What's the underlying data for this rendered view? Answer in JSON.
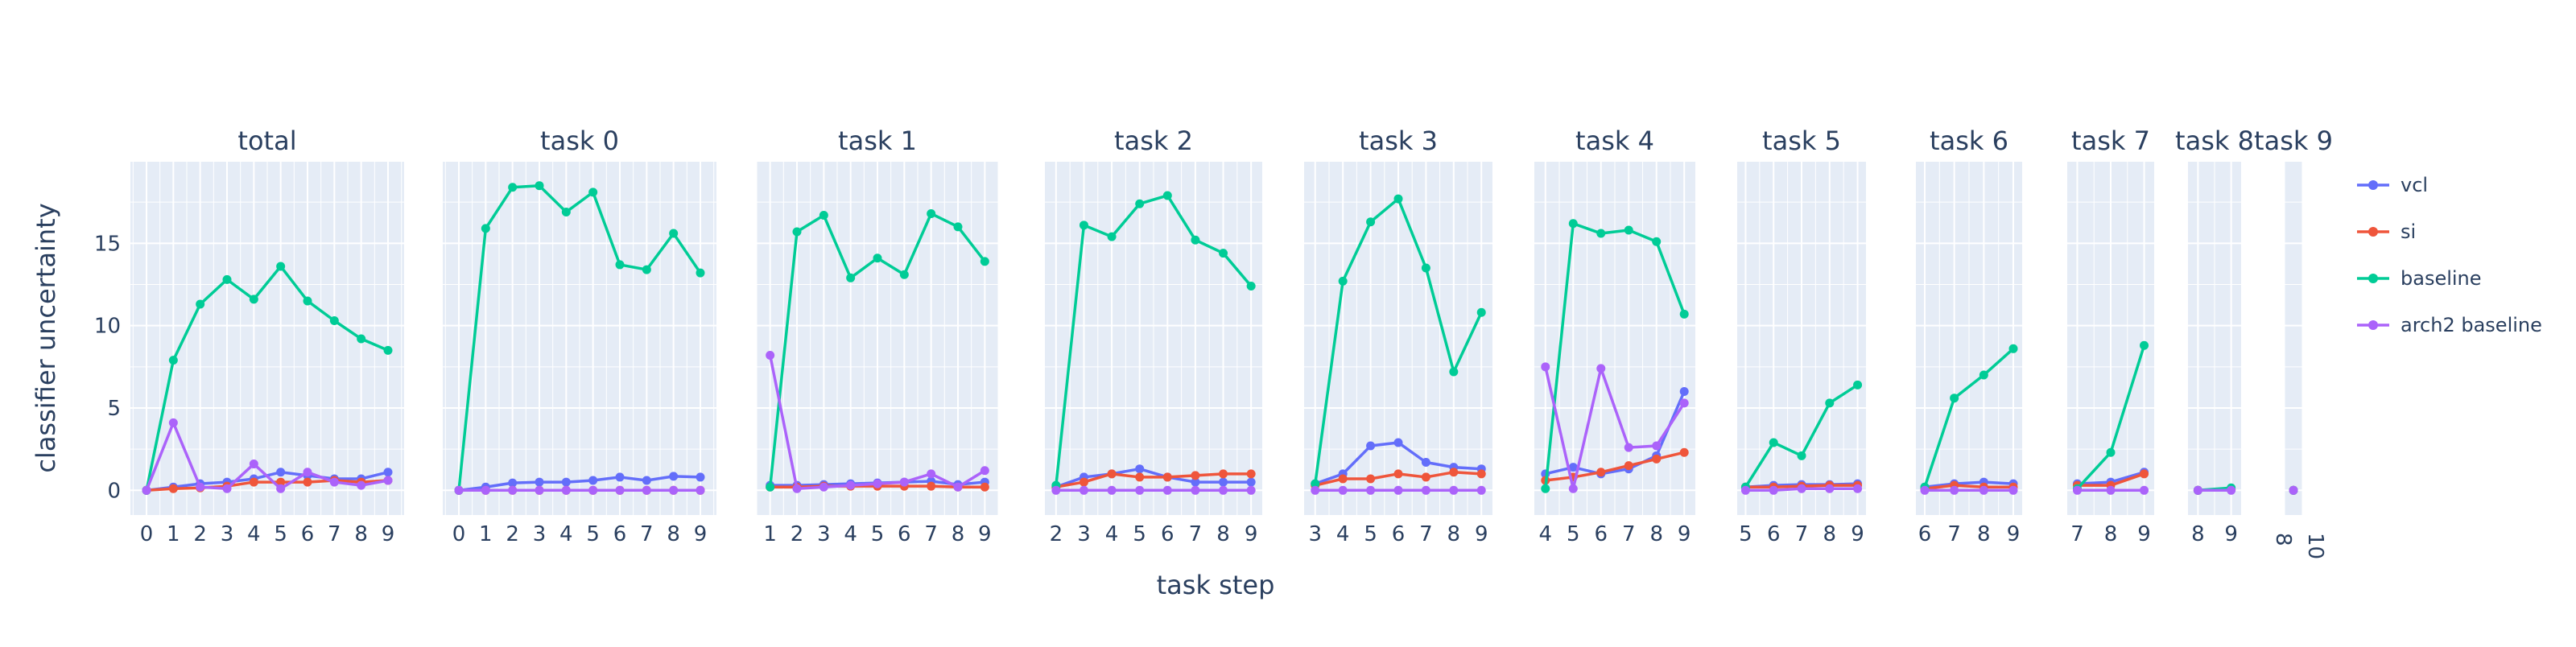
{
  "chart_data": {
    "type": "line",
    "ylabel": "classifier uncertainty",
    "xlabel": "task step",
    "ylim": [
      -1.5,
      20
    ],
    "yticks": [
      0,
      5,
      10,
      15
    ],
    "grid": true,
    "legend_position": "right",
    "series_styles": [
      {
        "name": "vcl",
        "color": "#636efa"
      },
      {
        "name": "si",
        "color": "#ef553b"
      },
      {
        "name": "baseline",
        "color": "#00cc96"
      },
      {
        "name": "arch2 baseline",
        "color": "#ab63fa"
      }
    ],
    "panels": [
      {
        "title": "total",
        "xlim": [
          -0.6,
          9.6
        ],
        "xticks": [
          0,
          1,
          2,
          3,
          4,
          5,
          6,
          7,
          8,
          9
        ],
        "series": [
          {
            "name": "vcl",
            "x": [
              0,
              1,
              2,
              3,
              4,
              5,
              6,
              7,
              8,
              9
            ],
            "y": [
              0,
              0.2,
              0.4,
              0.5,
              0.7,
              1.1,
              0.9,
              0.7,
              0.7,
              1.1
            ]
          },
          {
            "name": "si",
            "x": [
              0,
              1,
              2,
              3,
              4,
              5,
              6,
              7,
              8,
              9
            ],
            "y": [
              0,
              0.1,
              0.15,
              0.25,
              0.5,
              0.5,
              0.5,
              0.6,
              0.5,
              0.6
            ]
          },
          {
            "name": "baseline",
            "x": [
              0,
              1,
              2,
              3,
              4,
              5,
              6,
              7,
              8,
              9
            ],
            "y": [
              0,
              7.9,
              11.3,
              12.8,
              11.6,
              13.6,
              11.5,
              10.3,
              9.2,
              8.5
            ]
          },
          {
            "name": "arch2 baseline",
            "x": [
              0,
              1,
              2,
              3,
              4,
              5,
              6,
              7,
              8,
              9
            ],
            "y": [
              0,
              4.1,
              0.2,
              0.1,
              1.6,
              0.1,
              1.1,
              0.5,
              0.3,
              0.6
            ]
          }
        ]
      },
      {
        "title": "task 0",
        "xlim": [
          -0.6,
          9.6
        ],
        "xticks": [
          0,
          1,
          2,
          3,
          4,
          5,
          6,
          7,
          8,
          9
        ],
        "series": [
          {
            "name": "vcl",
            "x": [
              0,
              1,
              2,
              3,
              4,
              5,
              6,
              7,
              8,
              9
            ],
            "y": [
              0,
              0.2,
              0.45,
              0.5,
              0.5,
              0.6,
              0.8,
              0.6,
              0.85,
              0.8
            ]
          },
          {
            "name": "si",
            "x": [
              0,
              1,
              2,
              3,
              4,
              5,
              6,
              7,
              8,
              9
            ],
            "y": [
              0,
              0,
              0,
              0,
              0,
              0,
              0,
              0,
              0,
              0
            ]
          },
          {
            "name": "baseline",
            "x": [
              0,
              1,
              2,
              3,
              4,
              5,
              6,
              7,
              8,
              9
            ],
            "y": [
              0,
              15.9,
              18.4,
              18.5,
              16.9,
              18.1,
              13.7,
              13.4,
              15.6,
              13.2
            ]
          },
          {
            "name": "arch2 baseline",
            "x": [
              0,
              1,
              2,
              3,
              4,
              5,
              6,
              7,
              8,
              9
            ],
            "y": [
              0,
              0,
              0,
              0,
              0,
              0,
              0,
              0,
              0,
              0
            ]
          }
        ]
      },
      {
        "title": "task 1",
        "xlim": [
          0.5,
          9.5
        ],
        "xticks": [
          1,
          2,
          3,
          4,
          5,
          6,
          7,
          8,
          9
        ],
        "series": [
          {
            "name": "vcl",
            "x": [
              1,
              2,
              3,
              4,
              5,
              6,
              7,
              8,
              9
            ],
            "y": [
              0.3,
              0.3,
              0.35,
              0.4,
              0.45,
              0.5,
              0.55,
              0.35,
              0.5
            ]
          },
          {
            "name": "si",
            "x": [
              1,
              2,
              3,
              4,
              5,
              6,
              7,
              8,
              9
            ],
            "y": [
              0.2,
              0.2,
              0.25,
              0.25,
              0.25,
              0.25,
              0.25,
              0.2,
              0.2
            ]
          },
          {
            "name": "baseline",
            "x": [
              1,
              2,
              3,
              4,
              5,
              6,
              7,
              8,
              9
            ],
            "y": [
              0.2,
              15.7,
              16.7,
              12.9,
              14.1,
              13.1,
              16.8,
              16.0,
              13.9
            ]
          },
          {
            "name": "arch2 baseline",
            "x": [
              1,
              2,
              3,
              4,
              5,
              6,
              7,
              8,
              9
            ],
            "y": [
              8.2,
              0.1,
              0.2,
              0.3,
              0.4,
              0.5,
              1.0,
              0.2,
              1.2
            ]
          }
        ]
      },
      {
        "title": "task 2",
        "xlim": [
          1.6,
          9.4
        ],
        "xticks": [
          2,
          3,
          4,
          5,
          6,
          7,
          8,
          9
        ],
        "series": [
          {
            "name": "vcl",
            "x": [
              2,
              3,
              4,
              5,
              6,
              7,
              8,
              9
            ],
            "y": [
              0.2,
              0.8,
              1.0,
              1.3,
              0.8,
              0.5,
              0.5,
              0.5
            ]
          },
          {
            "name": "si",
            "x": [
              2,
              3,
              4,
              5,
              6,
              7,
              8,
              9
            ],
            "y": [
              0.2,
              0.5,
              1.0,
              0.8,
              0.8,
              0.9,
              1.0,
              1.0
            ]
          },
          {
            "name": "baseline",
            "x": [
              2,
              3,
              4,
              5,
              6,
              7,
              8,
              9
            ],
            "y": [
              0.3,
              16.1,
              15.4,
              17.4,
              17.9,
              15.2,
              14.4,
              12.4
            ]
          },
          {
            "name": "arch2 baseline",
            "x": [
              2,
              3,
              4,
              5,
              6,
              7,
              8,
              9
            ],
            "y": [
              0,
              0,
              0,
              0,
              0,
              0,
              0,
              0
            ]
          }
        ]
      },
      {
        "title": "task 3",
        "xlim": [
          2.6,
          9.4
        ],
        "xticks": [
          3,
          4,
          5,
          6,
          7,
          8,
          9
        ],
        "series": [
          {
            "name": "vcl",
            "x": [
              3,
              4,
              5,
              6,
              7,
              8,
              9
            ],
            "y": [
              0.4,
              1.0,
              2.7,
              2.9,
              1.7,
              1.4,
              1.3
            ]
          },
          {
            "name": "si",
            "x": [
              3,
              4,
              5,
              6,
              7,
              8,
              9
            ],
            "y": [
              0.3,
              0.7,
              0.7,
              1.0,
              0.8,
              1.1,
              1.0
            ]
          },
          {
            "name": "baseline",
            "x": [
              3,
              4,
              5,
              6,
              7,
              8,
              9
            ],
            "y": [
              0.4,
              12.7,
              16.3,
              17.7,
              13.5,
              7.2,
              10.8
            ]
          },
          {
            "name": "arch2 baseline",
            "x": [
              3,
              4,
              5,
              6,
              7,
              8,
              9
            ],
            "y": [
              0,
              0,
              0,
              0,
              0,
              0,
              0
            ]
          }
        ]
      },
      {
        "title": "task 4",
        "xlim": [
          3.6,
          9.4
        ],
        "xticks": [
          4,
          5,
          6,
          7,
          8,
          9
        ],
        "series": [
          {
            "name": "vcl",
            "x": [
              4,
              5,
              6,
              7,
              8,
              9
            ],
            "y": [
              1.0,
              1.4,
              1.0,
              1.3,
              2.1,
              6.0
            ]
          },
          {
            "name": "si",
            "x": [
              4,
              5,
              6,
              7,
              8,
              9
            ],
            "y": [
              0.6,
              0.8,
              1.1,
              1.5,
              1.9,
              2.3
            ]
          },
          {
            "name": "baseline",
            "x": [
              4,
              5,
              6,
              7,
              8,
              9
            ],
            "y": [
              0.1,
              16.2,
              15.6,
              15.8,
              15.1,
              10.7
            ]
          },
          {
            "name": "arch2 baseline",
            "x": [
              4,
              5,
              6,
              7,
              8,
              9
            ],
            "y": [
              7.5,
              0.1,
              7.4,
              2.6,
              2.7,
              5.3
            ]
          }
        ]
      },
      {
        "title": "task 5",
        "xlim": [
          4.7,
          9.3
        ],
        "xticks": [
          5,
          6,
          7,
          8,
          9
        ],
        "series": [
          {
            "name": "vcl",
            "x": [
              5,
              6,
              7,
              8,
              9
            ],
            "y": [
              0.2,
              0.3,
              0.35,
              0.35,
              0.4
            ]
          },
          {
            "name": "si",
            "x": [
              5,
              6,
              7,
              8,
              9
            ],
            "y": [
              0.2,
              0.2,
              0.25,
              0.3,
              0.3
            ]
          },
          {
            "name": "baseline",
            "x": [
              5,
              6,
              7,
              8,
              9
            ],
            "y": [
              0.2,
              2.9,
              2.1,
              5.3,
              6.4
            ]
          },
          {
            "name": "arch2 baseline",
            "x": [
              5,
              6,
              7,
              8,
              9
            ],
            "y": [
              0,
              0,
              0.1,
              0.1,
              0.1
            ]
          }
        ]
      },
      {
        "title": "task 6",
        "xlim": [
          5.7,
          9.3
        ],
        "xticks": [
          6,
          7,
          8,
          9
        ],
        "series": [
          {
            "name": "vcl",
            "x": [
              6,
              7,
              8,
              9
            ],
            "y": [
              0.2,
              0.4,
              0.5,
              0.4
            ]
          },
          {
            "name": "si",
            "x": [
              6,
              7,
              8,
              9
            ],
            "y": [
              0.1,
              0.3,
              0.2,
              0.2
            ]
          },
          {
            "name": "baseline",
            "x": [
              6,
              7,
              8,
              9
            ],
            "y": [
              0.2,
              5.6,
              7.0,
              8.6
            ]
          },
          {
            "name": "arch2 baseline",
            "x": [
              6,
              7,
              8,
              9
            ],
            "y": [
              0,
              0,
              0,
              0
            ]
          }
        ]
      },
      {
        "title": "task 7",
        "xlim": [
          6.7,
          9.3
        ],
        "xticks": [
          7,
          8,
          9
        ],
        "series": [
          {
            "name": "vcl",
            "x": [
              7,
              8,
              9
            ],
            "y": [
              0.4,
              0.5,
              1.1
            ]
          },
          {
            "name": "si",
            "x": [
              7,
              8,
              9
            ],
            "y": [
              0.3,
              0.3,
              1.0
            ]
          },
          {
            "name": "baseline",
            "x": [
              7,
              8,
              9
            ],
            "y": [
              0.1,
              2.3,
              8.8
            ]
          },
          {
            "name": "arch2 baseline",
            "x": [
              7,
              8,
              9
            ],
            "y": [
              0,
              0,
              0
            ]
          }
        ]
      },
      {
        "title": "task 8",
        "xlim": [
          7.7,
          9.3
        ],
        "xticks": [
          8,
          9
        ],
        "series": [
          {
            "name": "vcl",
            "x": [
              8,
              9
            ],
            "y": [
              0,
              0.05
            ]
          },
          {
            "name": "si",
            "x": [
              8,
              9
            ],
            "y": [
              0,
              0.05
            ]
          },
          {
            "name": "baseline",
            "x": [
              8,
              9
            ],
            "y": [
              0,
              0.15
            ]
          },
          {
            "name": "arch2 baseline",
            "x": [
              8,
              9
            ],
            "y": [
              0,
              0
            ]
          }
        ]
      },
      {
        "title": "task 9",
        "xlim": [
          8.5,
          9.5
        ],
        "xticks": [
          8,
          10
        ],
        "xtick_rotation": 90,
        "series": [
          {
            "name": "vcl",
            "x": [
              9
            ],
            "y": [
              0
            ]
          },
          {
            "name": "si",
            "x": [
              9
            ],
            "y": [
              0
            ]
          },
          {
            "name": "baseline",
            "x": [
              9
            ],
            "y": [
              0
            ]
          },
          {
            "name": "arch2 baseline",
            "x": [
              9
            ],
            "y": [
              0
            ]
          }
        ]
      }
    ]
  }
}
